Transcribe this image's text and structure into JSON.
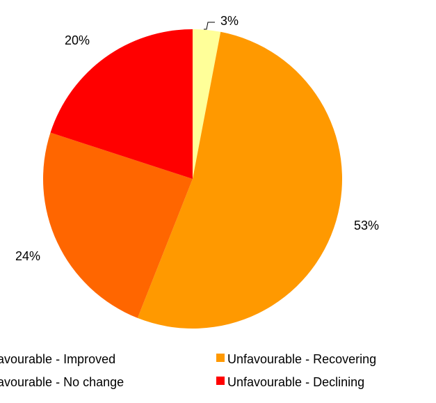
{
  "chart_data": {
    "type": "pie",
    "title": "",
    "slices": [
      {
        "label": "Unfavourable - Improved",
        "value": 3,
        "display": "3%",
        "color": "#ffff99"
      },
      {
        "label": "Unfavourable - Recovering",
        "value": 53,
        "display": "53%",
        "color": "#ff9900"
      },
      {
        "label": "Unfavourable - No change",
        "value": 24,
        "display": "24%",
        "color": "#ff6600"
      },
      {
        "label": "Unfavourable - Declining",
        "value": 20,
        "display": "20%",
        "color": "#ff0000"
      }
    ],
    "legend": {
      "placement": "bottom",
      "entries": [
        {
          "label": "Unfavourable - Improved",
          "color": "#ffff99"
        },
        {
          "label": "Unfavourable - Recovering",
          "color": "#ff9900"
        },
        {
          "label": "Unfavourable - No change",
          "color": "#ff6600"
        },
        {
          "label": "Unfavourable - Declining",
          "color": "#ff0000"
        }
      ]
    }
  }
}
